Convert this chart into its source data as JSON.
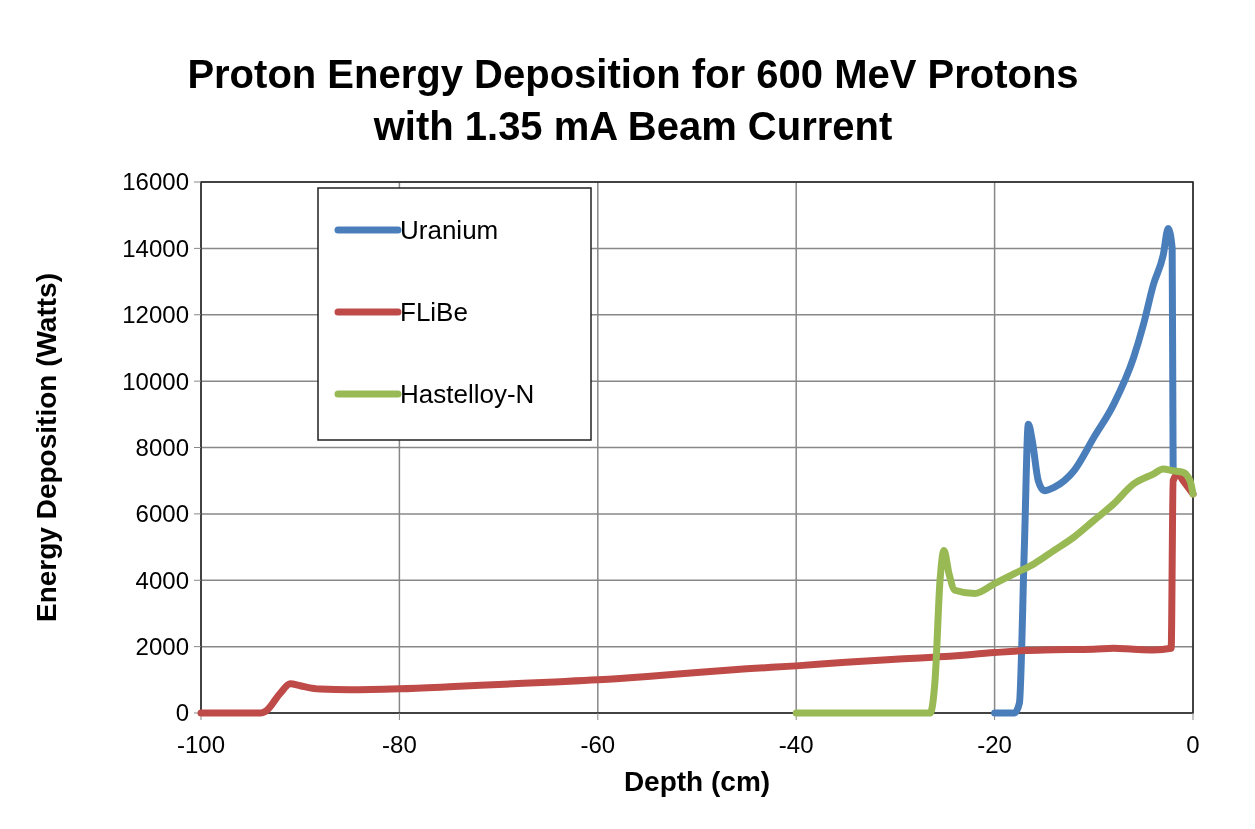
{
  "chart_data": {
    "type": "line",
    "title": "Proton Energy Deposition for 600 MeV Protons with 1.35 mA Beam Current",
    "xlabel": "Depth (cm)",
    "ylabel": "Energy Deposition (Watts)",
    "xlim": [
      -100,
      0
    ],
    "xticks": [
      -100,
      -80,
      -60,
      -40,
      -20,
      0
    ],
    "ylim": [
      0,
      16000
    ],
    "yticks": [
      0,
      2000,
      4000,
      6000,
      8000,
      10000,
      12000,
      14000,
      16000
    ],
    "grid": true,
    "legend": "top left",
    "marker": "none",
    "series": [
      {
        "name": "Uranium",
        "color": "#4a7ebb",
        "x": [
          -20,
          -18,
          -17.5,
          -17,
          -16.6,
          -16.2,
          -15.6,
          -15,
          -14,
          -12,
          -10,
          -8,
          -6,
          -5,
          -4,
          -3,
          -2.5,
          -2.1,
          -2,
          -1,
          -0.3
        ],
        "values": [
          0,
          0,
          300,
          5000,
          8700,
          8200,
          7000,
          6700,
          6800,
          7300,
          8300,
          9300,
          10700,
          11700,
          12900,
          13800,
          14600,
          14000,
          7300,
          7200,
          6900
        ]
      },
      {
        "name": "FLiBe",
        "color": "#be4b48",
        "x": [
          -100,
          -94,
          -93.5,
          -92,
          -91,
          -90,
          -88,
          -85,
          -80,
          -75,
          -70,
          -65,
          -60,
          -55,
          -50,
          -45,
          -40,
          -35,
          -30,
          -25,
          -20,
          -17,
          -15,
          -10,
          -8,
          -6,
          -4,
          -2.2,
          -2,
          -1.5,
          -1,
          0
        ],
        "values": [
          0,
          0,
          50,
          600,
          880,
          820,
          720,
          700,
          730,
          790,
          860,
          930,
          1000,
          1100,
          1220,
          1330,
          1420,
          1530,
          1620,
          1700,
          1820,
          1880,
          1900,
          1920,
          1950,
          1920,
          1900,
          1950,
          7000,
          7200,
          7000,
          6600
        ]
      },
      {
        "name": "Hastelloy-N",
        "color": "#98b954",
        "x": [
          -40,
          -26.5,
          -26,
          -25.5,
          -25.1,
          -24.6,
          -24,
          -22,
          -20,
          -18,
          -16,
          -14,
          -12,
          -10,
          -8,
          -6,
          -4,
          -3,
          -2,
          -1,
          -0.3,
          0
        ],
        "values": [
          0,
          0,
          1000,
          4000,
          4900,
          4200,
          3700,
          3600,
          3900,
          4200,
          4500,
          4900,
          5300,
          5800,
          6300,
          6900,
          7200,
          7350,
          7300,
          7250,
          7000,
          6600
        ]
      }
    ]
  }
}
